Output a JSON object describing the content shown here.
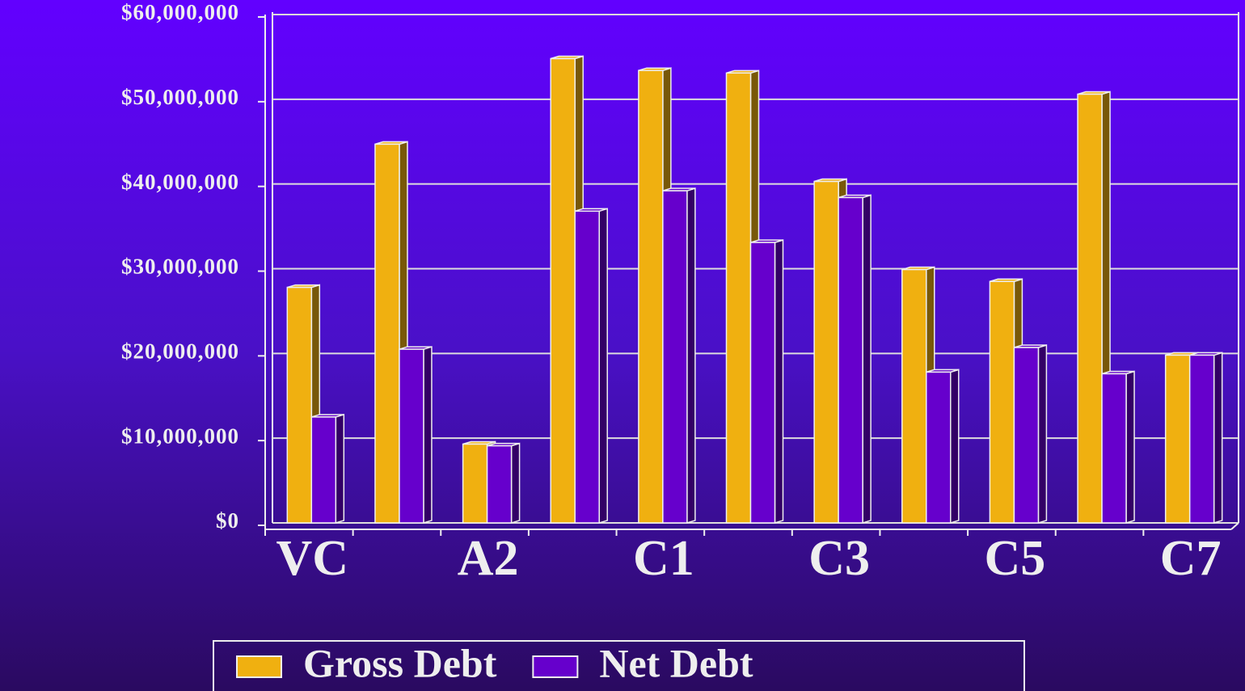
{
  "chart_data": {
    "type": "bar",
    "categories": [
      "VC",
      null,
      "A2",
      null,
      "C1",
      null,
      "C3",
      null,
      "C5",
      null,
      "C7"
    ],
    "series": [
      {
        "name": "Gross Debt",
        "color": "#f0b010",
        "values": [
          27800000,
          44700000,
          9300000,
          54800000,
          53400000,
          53100000,
          40300000,
          29900000,
          28500000,
          50600000,
          19800000
        ]
      },
      {
        "name": "Net Debt",
        "color": "#6600cc",
        "values": [
          12500000,
          20500000,
          9100000,
          36800000,
          39200000,
          33100000,
          38400000,
          17800000,
          20700000,
          17600000,
          19800000
        ]
      }
    ],
    "ylim": [
      0,
      60000000
    ],
    "yticks": [
      {
        "value": 0,
        "label": "$0"
      },
      {
        "value": 10000000,
        "label": "$10,000,000"
      },
      {
        "value": 20000000,
        "label": "$20,000,000"
      },
      {
        "value": 30000000,
        "label": "$30,000,000"
      },
      {
        "value": 40000000,
        "label": "$40,000,000"
      },
      {
        "value": 50000000,
        "label": "$50,000,000"
      },
      {
        "value": 60000000,
        "label": "$60,000,000"
      }
    ],
    "grid": true,
    "legend": "bottom"
  }
}
